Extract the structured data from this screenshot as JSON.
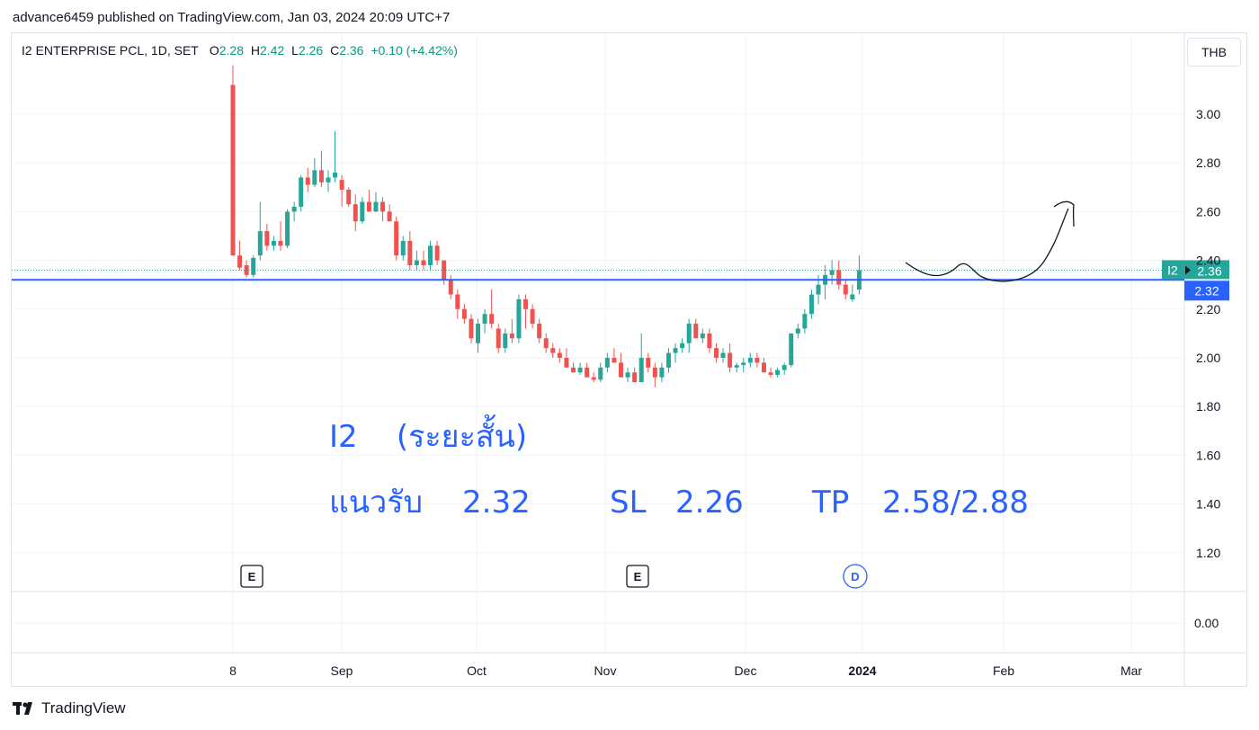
{
  "publisher": "advance6459 published on TradingView.com, Jan 03, 2024 20:09 UTC+7",
  "legend": {
    "symbol": "I2 ENTERPRISE PCL, 1D, SET",
    "open_label": "O",
    "open": "2.28",
    "high_label": "H",
    "high": "2.42",
    "low_label": "L",
    "low": "2.26",
    "close_label": "C",
    "close": "2.36",
    "change": "+0.10 (+4.42%)"
  },
  "currency": "THB",
  "footer": "TradingView",
  "price_badges": {
    "symbol": "I2",
    "last": "2.36",
    "line": "2.32"
  },
  "annotations": {
    "line1": "I2    (ระยะสั้น)",
    "line2a": "แนวรับ",
    "line2b": "2.32",
    "line2c": "SL",
    "line2d": "2.26",
    "line2e": "TP",
    "line2f": "2.58/2.88"
  },
  "markers": [
    "E",
    "E",
    "D"
  ],
  "colors": {
    "up": "#26a69a",
    "down": "#ef5350",
    "line": "#2962ff",
    "grid": "#f0f3fa"
  },
  "chart_data": {
    "type": "candlestick",
    "title": "I2 ENTERPRISE PCL, 1D, SET",
    "x_ticks": [
      "8",
      "Sep",
      "Oct",
      "Nov",
      "Dec",
      "2024",
      "Feb",
      "Mar"
    ],
    "y_ticks": [
      "3.00",
      "2.80",
      "2.60",
      "2.40",
      "2.20",
      "2.00",
      "1.80",
      "1.60",
      "1.40",
      "1.20"
    ],
    "lower_pane_tick": "0.00",
    "ylim": [
      1.08,
      3.2
    ],
    "grid": true,
    "horizontal_line": 2.32,
    "candles": [
      {
        "o": 3.12,
        "h": 3.2,
        "l": 2.42,
        "c": 2.42
      },
      {
        "o": 2.42,
        "h": 2.48,
        "l": 2.36,
        "c": 2.37
      },
      {
        "o": 2.38,
        "h": 2.4,
        "l": 2.33,
        "c": 2.34
      },
      {
        "o": 2.34,
        "h": 2.42,
        "l": 2.33,
        "c": 2.41
      },
      {
        "o": 2.42,
        "h": 2.64,
        "l": 2.4,
        "c": 2.52
      },
      {
        "o": 2.52,
        "h": 2.55,
        "l": 2.44,
        "c": 2.46
      },
      {
        "o": 2.46,
        "h": 2.5,
        "l": 2.44,
        "c": 2.48
      },
      {
        "o": 2.48,
        "h": 2.56,
        "l": 2.44,
        "c": 2.46
      },
      {
        "o": 2.46,
        "h": 2.61,
        "l": 2.45,
        "c": 2.6
      },
      {
        "o": 2.6,
        "h": 2.64,
        "l": 2.56,
        "c": 2.62
      },
      {
        "o": 2.62,
        "h": 2.75,
        "l": 2.6,
        "c": 2.74
      },
      {
        "o": 2.74,
        "h": 2.78,
        "l": 2.68,
        "c": 2.71
      },
      {
        "o": 2.71,
        "h": 2.82,
        "l": 2.7,
        "c": 2.77
      },
      {
        "o": 2.77,
        "h": 2.85,
        "l": 2.7,
        "c": 2.72
      },
      {
        "o": 2.72,
        "h": 2.77,
        "l": 2.68,
        "c": 2.74
      },
      {
        "o": 2.74,
        "h": 2.93,
        "l": 2.72,
        "c": 2.76
      },
      {
        "o": 2.73,
        "h": 2.75,
        "l": 2.62,
        "c": 2.69
      },
      {
        "o": 2.69,
        "h": 2.7,
        "l": 2.62,
        "c": 2.63
      },
      {
        "o": 2.63,
        "h": 2.67,
        "l": 2.52,
        "c": 2.56
      },
      {
        "o": 2.56,
        "h": 2.66,
        "l": 2.55,
        "c": 2.64
      },
      {
        "o": 2.64,
        "h": 2.69,
        "l": 2.6,
        "c": 2.6
      },
      {
        "o": 2.6,
        "h": 2.68,
        "l": 2.6,
        "c": 2.64
      },
      {
        "o": 2.64,
        "h": 2.66,
        "l": 2.56,
        "c": 2.6
      },
      {
        "o": 2.6,
        "h": 2.63,
        "l": 2.56,
        "c": 2.56
      },
      {
        "o": 2.56,
        "h": 2.58,
        "l": 2.4,
        "c": 2.42
      },
      {
        "o": 2.42,
        "h": 2.5,
        "l": 2.4,
        "c": 2.48
      },
      {
        "o": 2.48,
        "h": 2.52,
        "l": 2.36,
        "c": 2.38
      },
      {
        "o": 2.38,
        "h": 2.44,
        "l": 2.36,
        "c": 2.4
      },
      {
        "o": 2.4,
        "h": 2.44,
        "l": 2.36,
        "c": 2.38
      },
      {
        "o": 2.38,
        "h": 2.48,
        "l": 2.36,
        "c": 2.46
      },
      {
        "o": 2.46,
        "h": 2.48,
        "l": 2.38,
        "c": 2.4
      },
      {
        "o": 2.4,
        "h": 2.4,
        "l": 2.3,
        "c": 2.32
      },
      {
        "o": 2.32,
        "h": 2.34,
        "l": 2.24,
        "c": 2.26
      },
      {
        "o": 2.26,
        "h": 2.28,
        "l": 2.16,
        "c": 2.2
      },
      {
        "o": 2.2,
        "h": 2.22,
        "l": 2.14,
        "c": 2.16
      },
      {
        "o": 2.16,
        "h": 2.18,
        "l": 2.06,
        "c": 2.08
      },
      {
        "o": 2.06,
        "h": 2.16,
        "l": 2.02,
        "c": 2.14
      },
      {
        "o": 2.14,
        "h": 2.2,
        "l": 2.1,
        "c": 2.18
      },
      {
        "o": 2.18,
        "h": 2.28,
        "l": 2.12,
        "c": 2.14
      },
      {
        "o": 2.12,
        "h": 2.14,
        "l": 2.02,
        "c": 2.04
      },
      {
        "o": 2.04,
        "h": 2.12,
        "l": 2.02,
        "c": 2.1
      },
      {
        "o": 2.1,
        "h": 2.16,
        "l": 2.06,
        "c": 2.08
      },
      {
        "o": 2.08,
        "h": 2.26,
        "l": 2.06,
        "c": 2.24
      },
      {
        "o": 2.24,
        "h": 2.26,
        "l": 2.12,
        "c": 2.2
      },
      {
        "o": 2.2,
        "h": 2.22,
        "l": 2.12,
        "c": 2.14
      },
      {
        "o": 2.14,
        "h": 2.16,
        "l": 2.06,
        "c": 2.08
      },
      {
        "o": 2.08,
        "h": 2.1,
        "l": 2.02,
        "c": 2.04
      },
      {
        "o": 2.04,
        "h": 2.06,
        "l": 2.0,
        "c": 2.02
      },
      {
        "o": 2.02,
        "h": 2.04,
        "l": 1.98,
        "c": 2.0
      },
      {
        "o": 2.0,
        "h": 2.04,
        "l": 1.96,
        "c": 1.96
      },
      {
        "o": 1.96,
        "h": 1.98,
        "l": 1.94,
        "c": 1.94
      },
      {
        "o": 1.94,
        "h": 1.98,
        "l": 1.93,
        "c": 1.96
      },
      {
        "o": 1.96,
        "h": 1.98,
        "l": 1.92,
        "c": 1.92
      },
      {
        "o": 1.92,
        "h": 1.94,
        "l": 1.9,
        "c": 1.91
      },
      {
        "o": 1.91,
        "h": 1.98,
        "l": 1.9,
        "c": 1.96
      },
      {
        "o": 1.96,
        "h": 2.02,
        "l": 1.94,
        "c": 2.0
      },
      {
        "o": 2.0,
        "h": 2.04,
        "l": 1.98,
        "c": 1.98
      },
      {
        "o": 1.98,
        "h": 2.02,
        "l": 1.92,
        "c": 1.92
      },
      {
        "o": 1.92,
        "h": 1.96,
        "l": 1.9,
        "c": 1.94
      },
      {
        "o": 1.94,
        "h": 1.96,
        "l": 1.9,
        "c": 1.9
      },
      {
        "o": 1.9,
        "h": 2.1,
        "l": 1.9,
        "c": 2.0
      },
      {
        "o": 2.0,
        "h": 2.02,
        "l": 1.94,
        "c": 1.96
      },
      {
        "o": 1.96,
        "h": 1.98,
        "l": 1.88,
        "c": 1.92
      },
      {
        "o": 1.92,
        "h": 1.98,
        "l": 1.9,
        "c": 1.96
      },
      {
        "o": 1.96,
        "h": 2.04,
        "l": 1.94,
        "c": 2.02
      },
      {
        "o": 2.02,
        "h": 2.06,
        "l": 1.98,
        "c": 2.04
      },
      {
        "o": 2.04,
        "h": 2.08,
        "l": 2.02,
        "c": 2.06
      },
      {
        "o": 2.06,
        "h": 2.16,
        "l": 2.02,
        "c": 2.14
      },
      {
        "o": 2.14,
        "h": 2.16,
        "l": 2.08,
        "c": 2.08
      },
      {
        "o": 2.08,
        "h": 2.12,
        "l": 2.06,
        "c": 2.1
      },
      {
        "o": 2.1,
        "h": 2.12,
        "l": 2.02,
        "c": 2.04
      },
      {
        "o": 2.04,
        "h": 2.06,
        "l": 1.98,
        "c": 2.0
      },
      {
        "o": 2.0,
        "h": 2.04,
        "l": 1.98,
        "c": 2.02
      },
      {
        "o": 2.02,
        "h": 2.06,
        "l": 1.94,
        "c": 1.96
      },
      {
        "o": 1.96,
        "h": 1.98,
        "l": 1.94,
        "c": 1.97
      },
      {
        "o": 1.97,
        "h": 2.0,
        "l": 1.94,
        "c": 1.98
      },
      {
        "o": 1.98,
        "h": 2.02,
        "l": 1.96,
        "c": 2.0
      },
      {
        "o": 2.0,
        "h": 2.02,
        "l": 1.96,
        "c": 1.98
      },
      {
        "o": 1.98,
        "h": 2.0,
        "l": 1.94,
        "c": 1.94
      },
      {
        "o": 1.94,
        "h": 1.96,
        "l": 1.92,
        "c": 1.93
      },
      {
        "o": 1.93,
        "h": 1.96,
        "l": 1.92,
        "c": 1.95
      },
      {
        "o": 1.95,
        "h": 1.98,
        "l": 1.93,
        "c": 1.97
      },
      {
        "o": 1.97,
        "h": 2.1,
        "l": 1.96,
        "c": 2.1
      },
      {
        "o": 2.1,
        "h": 2.14,
        "l": 2.08,
        "c": 2.12
      },
      {
        "o": 2.12,
        "h": 2.2,
        "l": 2.1,
        "c": 2.18
      },
      {
        "o": 2.18,
        "h": 2.28,
        "l": 2.16,
        "c": 2.26
      },
      {
        "o": 2.26,
        "h": 2.34,
        "l": 2.22,
        "c": 2.3
      },
      {
        "o": 2.3,
        "h": 2.38,
        "l": 2.24,
        "c": 2.34
      },
      {
        "o": 2.34,
        "h": 2.4,
        "l": 2.3,
        "c": 2.36
      },
      {
        "o": 2.36,
        "h": 2.4,
        "l": 2.28,
        "c": 2.3
      },
      {
        "o": 2.3,
        "h": 2.32,
        "l": 2.24,
        "c": 2.26
      },
      {
        "o": 2.24,
        "h": 2.3,
        "l": 2.23,
        "c": 2.26
      },
      {
        "o": 2.28,
        "h": 2.42,
        "l": 2.26,
        "c": 2.36
      }
    ]
  }
}
